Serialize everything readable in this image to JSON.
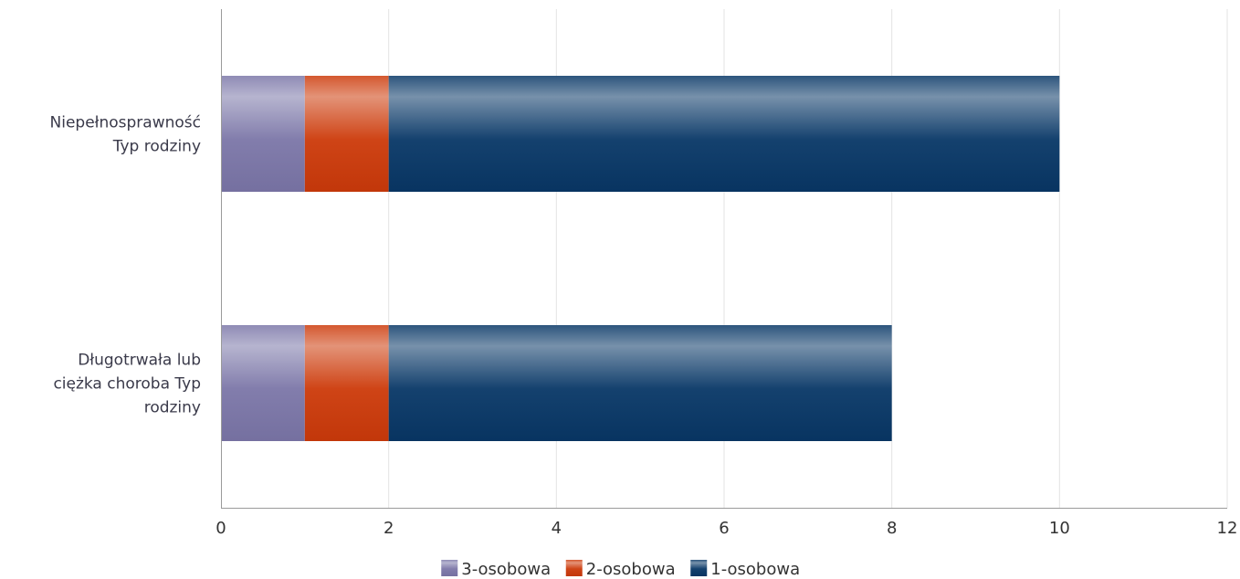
{
  "chart_data": {
    "type": "bar",
    "orientation": "horizontal",
    "stacked": true,
    "categories": [
      [
        "Niepełnosprawność",
        "Typ rodziny"
      ],
      [
        "Długotrwała lub",
        "ciężka choroba Typ",
        "rodziny"
      ]
    ],
    "series": [
      {
        "name": "3-osobowa",
        "values": [
          1,
          1
        ],
        "color": "#7b76a8"
      },
      {
        "name": "2-osobowa",
        "values": [
          1,
          1
        ],
        "color": "#cc3a0a"
      },
      {
        "name": "1-osobowa",
        "values": [
          8,
          6
        ],
        "color": "#083766"
      }
    ],
    "xlim": [
      0,
      12
    ],
    "xticks": [
      "0",
      "2",
      "4",
      "6",
      "8",
      "10",
      "12"
    ],
    "grid": "vertical",
    "legend_position": "bottom"
  }
}
